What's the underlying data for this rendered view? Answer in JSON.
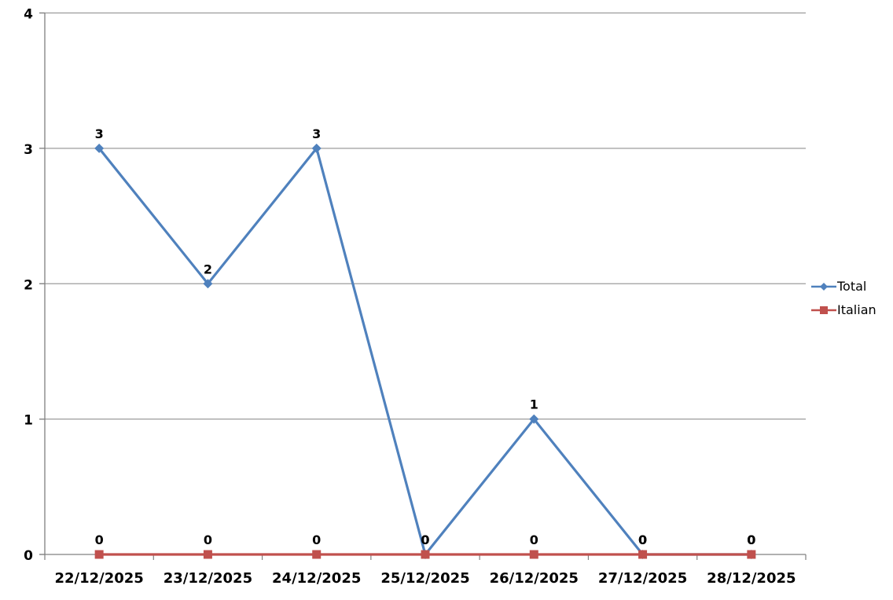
{
  "chart_data": {
    "type": "line",
    "categories": [
      "22/12/2025",
      "23/12/2025",
      "24/12/2025",
      "25/12/2025",
      "26/12/2025",
      "27/12/2025",
      "28/12/2025"
    ],
    "series": [
      {
        "name": "Total",
        "values": [
          3,
          2,
          3,
          0,
          1,
          0,
          0
        ],
        "color": "#4F81BD",
        "marker": "diamond"
      },
      {
        "name": "Italian",
        "values": [
          0,
          0,
          0,
          0,
          0,
          0,
          0
        ],
        "color": "#C0504D",
        "marker": "square"
      }
    ],
    "ylim": [
      0,
      4
    ],
    "yticks": [
      0,
      1,
      2,
      3,
      4
    ],
    "ytick_labels": [
      "0",
      "1",
      "2",
      "3",
      "4"
    ],
    "grid": true,
    "data_labels": true,
    "legend_position": "right"
  },
  "style": {
    "gridline_color": "#9b9b9b",
    "axis_color": "#808080",
    "label_color": "#000000",
    "background": "#ffffff"
  }
}
